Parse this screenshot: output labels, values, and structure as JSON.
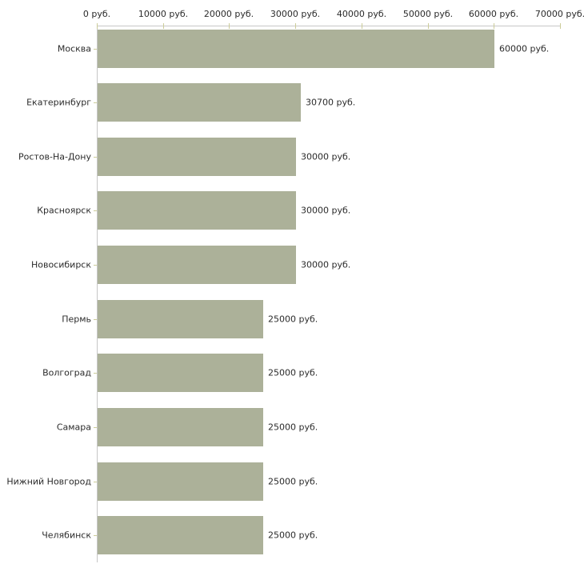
{
  "chart_data": {
    "type": "bar",
    "orientation": "horizontal",
    "unit": "руб.",
    "categories": [
      "Москва",
      "Екатеринбург",
      "Ростов-На-Дону",
      "Красноярск",
      "Новосибирск",
      "Пермь",
      "Волгоград",
      "Самара",
      "Нижний Новгород",
      "Челябинск"
    ],
    "values": [
      60000,
      30700,
      30000,
      30000,
      30000,
      25000,
      25000,
      25000,
      25000,
      25000
    ],
    "bar_labels": [
      "60000 руб.",
      "30700 руб.",
      "30000 руб.",
      "30000 руб.",
      "30000 руб.",
      "25000 руб.",
      "25000 руб.",
      "25000 руб.",
      "25000 руб.",
      "25000 руб."
    ],
    "x_axis": {
      "position": "top",
      "range": [
        0,
        70000
      ],
      "ticks": [
        0,
        10000,
        20000,
        30000,
        40000,
        50000,
        60000,
        70000
      ],
      "tick_labels": [
        "0 руб.",
        "10000 руб.",
        "20000 руб.",
        "30000 руб.",
        "40000 руб.",
        "50000 руб.",
        "60000 руб.",
        "70000 руб."
      ]
    },
    "legend": "none",
    "grid": false,
    "colors": {
      "bar": "#acb199",
      "axis_line": "#c6c6c6",
      "tick_mark": "#cccc99",
      "text": "#2b2b2b",
      "background": "#ffffff"
    }
  }
}
